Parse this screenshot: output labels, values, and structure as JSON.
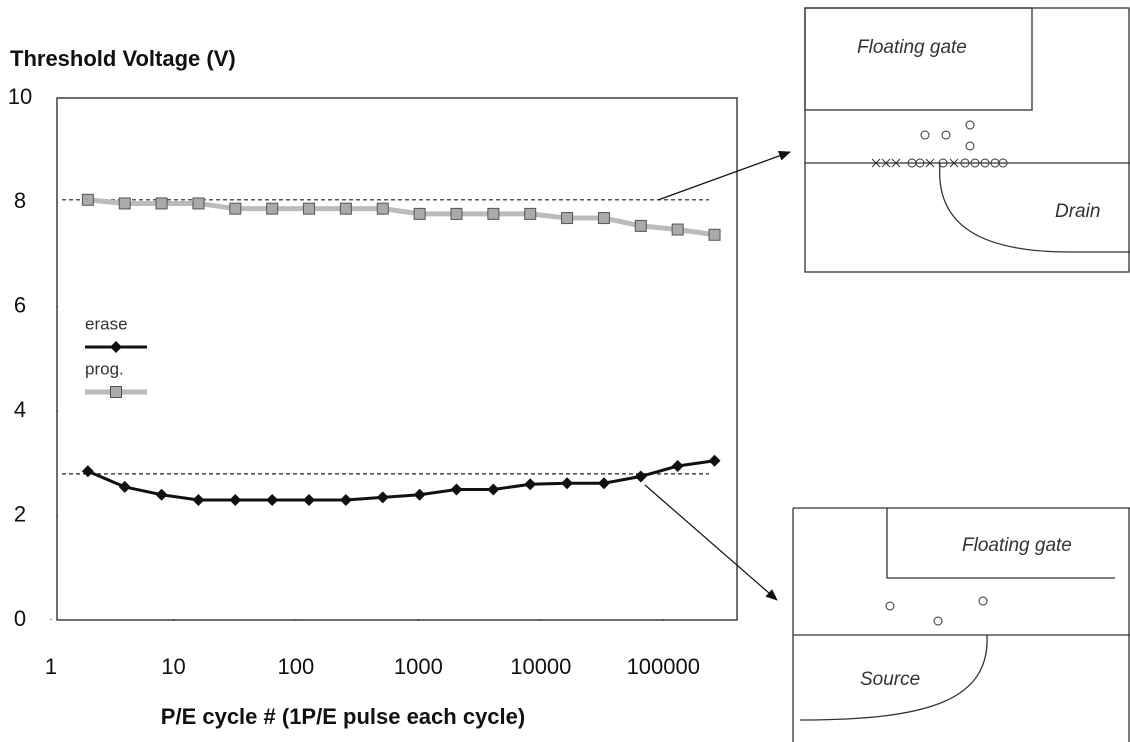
{
  "chart_data": {
    "type": "line",
    "ytitle": "Threshold Voltage (V)",
    "xlabel": "P/E cycle # (1P/E pulse each cycle)",
    "xscale": "log",
    "x": [
      2,
      4,
      8,
      16,
      32,
      64,
      128,
      256,
      512,
      1024,
      2048,
      4096,
      8192,
      16384,
      32768,
      65536,
      131072,
      262144
    ],
    "series": [
      {
        "name": "erase",
        "color": "#111111",
        "marker": "diamond",
        "values": [
          2.85,
          2.55,
          2.4,
          2.3,
          2.3,
          2.3,
          2.3,
          2.3,
          2.35,
          2.4,
          2.5,
          2.5,
          2.6,
          2.62,
          2.62,
          2.75,
          2.95,
          3.05
        ]
      },
      {
        "name": "prog.",
        "color": "#bbbbbb",
        "marker": "square",
        "values": [
          8.05,
          7.98,
          7.98,
          7.98,
          7.88,
          7.88,
          7.88,
          7.88,
          7.88,
          7.78,
          7.78,
          7.78,
          7.78,
          7.7,
          7.7,
          7.55,
          7.48,
          7.38
        ]
      }
    ],
    "reference_lines": [
      8.05,
      2.8
    ],
    "xlim": [
      1,
      400000
    ],
    "xticks": [
      1,
      10,
      100,
      1000,
      10000,
      100000
    ],
    "ylim": [
      0,
      10
    ],
    "yticks": [
      0,
      2,
      4,
      6,
      8,
      10
    ],
    "grid": false,
    "legend": "left"
  },
  "diagrams": {
    "drain_cell": {
      "gate_label": "Floating gate",
      "region_label": "Drain"
    },
    "source_cell": {
      "gate_label": "Floating gate",
      "region_label": "Source"
    }
  }
}
